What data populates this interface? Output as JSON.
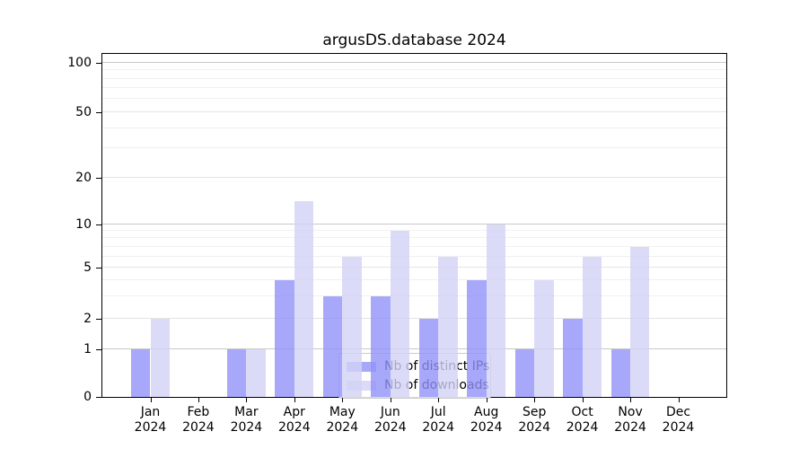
{
  "chart_data": {
    "type": "bar",
    "title": "argusDS.database 2024",
    "categories": [
      "Jan 2024",
      "Feb 2024",
      "Mar 2024",
      "Apr 2024",
      "May 2024",
      "Jun 2024",
      "Jul 2024",
      "Aug 2024",
      "Sep 2024",
      "Oct 2024",
      "Nov 2024",
      "Dec 2024"
    ],
    "series": [
      {
        "name": "Nb of distinct IPs",
        "color": "rgba(146,146,250,0.8)",
        "values": [
          1,
          0,
          1,
          4,
          3,
          3,
          2,
          4,
          1,
          2,
          1,
          0
        ]
      },
      {
        "name": "Nb of downloads",
        "color": "rgba(210,210,246,0.8)",
        "values": [
          2,
          0,
          1,
          14,
          6,
          9,
          6,
          10,
          4,
          6,
          7,
          0
        ]
      }
    ],
    "yscale": "symlog",
    "y_ticks": [
      0,
      1,
      2,
      5,
      10,
      20,
      50,
      100
    ],
    "y_minor_gridlines": [
      3,
      4,
      6,
      7,
      8,
      9,
      30,
      40,
      60,
      70,
      80,
      90
    ],
    "grid": true,
    "legend_position": "inside-bottom-center",
    "colors": {
      "axis": "#000000",
      "major_gridline": "#c9c9c9",
      "minor_gridline": "#f0f0f0",
      "legend_border": "#cccccc"
    }
  }
}
